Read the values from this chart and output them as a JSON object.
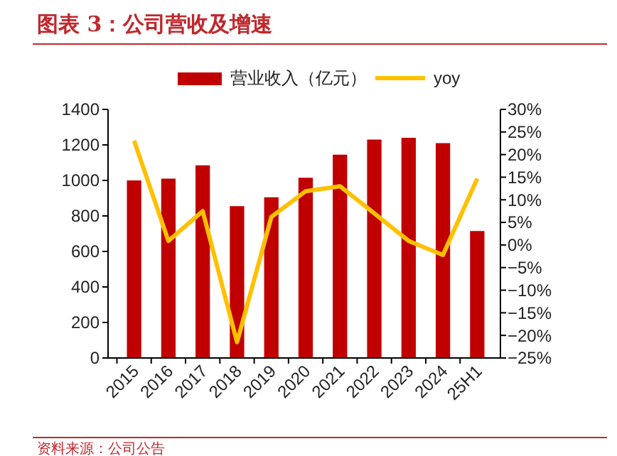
{
  "chart_data": {
    "type": "bar",
    "title": "图表 3：公司营收及增速",
    "categories": [
      "2015",
      "2016",
      "2017",
      "2018",
      "2019",
      "2020",
      "2021",
      "2022",
      "2023",
      "2024",
      "25H1"
    ],
    "series": [
      {
        "name": "营业收入（亿元）",
        "color": "#c00000",
        "values": [
          1000,
          1010,
          1085,
          855,
          905,
          1015,
          1145,
          1230,
          1240,
          1210,
          715
        ]
      },
      {
        "name": "yoy",
        "type": "line",
        "axis": "y2",
        "color": "#ffc000",
        "values": [
          23.1,
          0.9,
          7.5,
          -21.5,
          6.2,
          11.9,
          13.0,
          7.0,
          0.9,
          -2.2,
          14.7
        ]
      }
    ],
    "ylim": [
      0,
      1400
    ],
    "yticks": [
      0,
      200,
      400,
      600,
      800,
      1000,
      1200,
      1400
    ],
    "y2lim": [
      -25,
      30
    ],
    "y2ticks": [
      {
        "value": -25,
        "label": "−25%"
      },
      {
        "value": -20,
        "label": "−20%"
      },
      {
        "value": -15,
        "label": "−15%"
      },
      {
        "value": -10,
        "label": "−10%"
      },
      {
        "value": -5,
        "label": "−5%"
      },
      {
        "value": 0,
        "label": "0%"
      },
      {
        "value": 5,
        "label": "5%"
      },
      {
        "value": 10,
        "label": "10%"
      },
      {
        "value": 15,
        "label": "15%"
      },
      {
        "value": 20,
        "label": "20%"
      },
      {
        "value": 25,
        "label": "25%"
      },
      {
        "value": 30,
        "label": "30%"
      }
    ],
    "legend": "top",
    "grid": false,
    "marker": "none",
    "line_style": "solid",
    "annotations": [
      "资料来源：公司公告"
    ]
  }
}
